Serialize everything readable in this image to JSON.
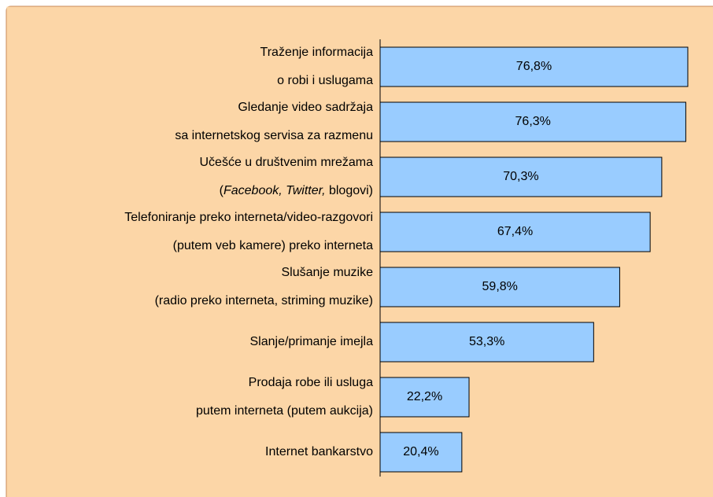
{
  "chart_data": {
    "type": "barh",
    "categories": [
      [
        "Traženje informacija",
        "o robi i uslugama"
      ],
      [
        "Gledanje video sadržaja",
        "sa internetskog servisa za razmenu"
      ],
      [
        "Učešće u društvenim mrežama",
        [
          {
            "text": "(",
            "italic": false
          },
          {
            "text": "Facebook, Twitter,",
            "italic": true
          },
          {
            "text": " blogovi)",
            "italic": false
          }
        ]
      ],
      [
        "Telefoniranje preko interneta/video-razgovori",
        "(putem veb kamere) preko interneta"
      ],
      [
        "Slušanje muzike",
        "(radio preko interneta, striming muzike)"
      ],
      [
        "Slanje/primanje imejla"
      ],
      [
        "Prodaja robe ili usluga",
        "putem interneta (putem aukcija)"
      ],
      [
        "Internet bankarstvo"
      ]
    ],
    "values": [
      76.8,
      76.3,
      70.3,
      67.4,
      59.8,
      53.3,
      22.2,
      20.4
    ],
    "value_labels": [
      "76,8%",
      "76,3%",
      "70,3%",
      "67,4%",
      "59,8%",
      "53,3%",
      "22,2%",
      "20,4%"
    ],
    "color": "#99ccff",
    "xlim": [
      0,
      77
    ]
  }
}
